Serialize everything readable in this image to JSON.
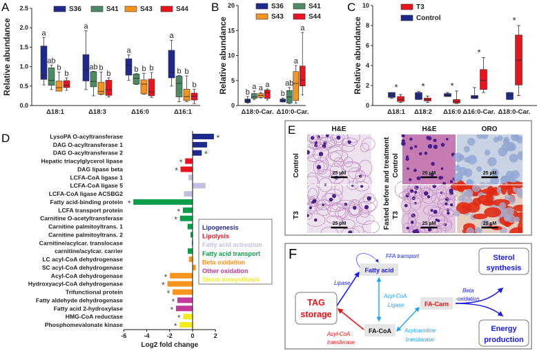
{
  "chart_data": [
    {
      "panel": "A",
      "type": "box",
      "ylabel": "Relative abundance",
      "ylim": [
        0,
        2.5
      ],
      "yticks": [
        "0.0",
        "0.5",
        "1.0",
        "1.5",
        "2.0",
        "2.5"
      ],
      "series_names": [
        "S36",
        "S41",
        "S43",
        "S44"
      ],
      "colors": [
        "#1f2a8c",
        "#4e8a63",
        "#f7941d",
        "#e8141e"
      ],
      "categories": [
        "Δ18:1",
        "Δ18:3",
        "Δ16:0",
        "Δ16:1"
      ],
      "boxes_min_q1_med_q3_max": [
        [
          [
            0.53,
            0.67,
            0.78,
            1.53,
            1.75
          ],
          [
            0.41,
            0.52,
            0.65,
            0.97,
            1.04
          ],
          [
            0.37,
            0.37,
            0.46,
            0.63,
            0.86
          ],
          [
            0.39,
            0.46,
            0.52,
            0.64,
            0.71
          ]
        ],
        [
          [
            0.41,
            0.63,
            0.92,
            1.31,
            1.92
          ],
          [
            0.25,
            0.48,
            0.62,
            0.87,
            0.88
          ],
          [
            0.28,
            0.29,
            0.36,
            0.6,
            0.86
          ],
          [
            0.22,
            0.26,
            0.41,
            0.65,
            0.71
          ]
        ],
        [
          [
            0.65,
            0.78,
            1.03,
            1.2,
            1.3
          ],
          [
            0.54,
            0.55,
            0.7,
            0.81,
            0.82
          ],
          [
            0.29,
            0.3,
            0.55,
            0.66,
            0.83
          ],
          [
            0.21,
            0.25,
            0.35,
            0.68,
            0.85
          ]
        ],
        [
          [
            0.5,
            0.71,
            0.85,
            1.42,
            1.68
          ],
          [
            0.1,
            0.22,
            0.57,
            0.76,
            0.77
          ],
          [
            0.1,
            0.13,
            0.23,
            0.42,
            0.76
          ],
          [
            0.05,
            0.14,
            0.24,
            0.32,
            0.42
          ]
        ]
      ],
      "letters": [
        [
          "a",
          "ab",
          "b",
          "b"
        ],
        [
          "a",
          "ab",
          "b",
          "b"
        ],
        [
          "a",
          "b",
          "b",
          "b"
        ],
        [
          "a",
          "b",
          "b",
          "b"
        ]
      ]
    },
    {
      "panel": "B",
      "type": "box",
      "ylabel": "Relative abundance",
      "ylim": [
        0,
        20
      ],
      "yticks": [
        "0",
        "5",
        "10",
        "15",
        "20"
      ],
      "series_names": [
        "S36",
        "S41",
        "S43",
        "S44"
      ],
      "colors": [
        "#1f2a8c",
        "#4e8a63",
        "#f7941d",
        "#e8141e"
      ],
      "categories": [
        "Δ18:0-Car.",
        "Δ10:0-Car."
      ],
      "boxes_min_q1_med_q3_max": [
        [
          [
            0.5,
            0.6,
            1.0,
            1.3,
            1.8
          ],
          [
            1.2,
            1.4,
            1.7,
            2.4,
            2.9
          ],
          [
            1.5,
            1.6,
            2.0,
            2.4,
            2.6
          ],
          [
            1.1,
            1.4,
            2.6,
            3.1,
            3.3
          ]
        ],
        [
          [
            0.7,
            0.7,
            1.0,
            1.3,
            1.5
          ],
          [
            0.4,
            0.5,
            1.7,
            3.0,
            3.6
          ],
          [
            0.5,
            1.0,
            4.4,
            6.8,
            8.0
          ],
          [
            2.1,
            3.9,
            5.1,
            7.9,
            14.6
          ]
        ]
      ],
      "letters": [
        [
          "b",
          "a",
          "a",
          "a"
        ],
        [
          "b",
          "ab",
          "a",
          "a"
        ]
      ]
    },
    {
      "panel": "C",
      "type": "box",
      "ylabel": "Relative abundance",
      "ylim": [
        0,
        10
      ],
      "yticks": [
        "0",
        "2",
        "4",
        "6",
        "8",
        "10"
      ],
      "series_names": [
        "Control",
        "T3"
      ],
      "legend_order": [
        "T3",
        "Control"
      ],
      "colors": [
        "#1f2a8c",
        "#e8141e"
      ],
      "categories": [
        "Δ18:1",
        "Δ18:2",
        "Δ16:0",
        "Δ16:0-Car.",
        "Δ18:0-Car."
      ],
      "boxes_min_q1_med_q3_max": [
        [
          [
            0.7,
            0.8,
            1.0,
            1.3,
            1.3
          ],
          [
            0.3,
            0.4,
            0.6,
            0.9,
            1.1
          ]
        ],
        [
          [
            0.6,
            0.6,
            1.0,
            1.3,
            1.4
          ],
          [
            0.3,
            0.45,
            0.6,
            0.75,
            0.95
          ]
        ],
        [
          [
            0.9,
            0.9,
            1.0,
            1.2,
            1.3
          ],
          [
            0.2,
            0.25,
            0.4,
            0.6,
            1.45
          ]
        ],
        [
          [
            0.7,
            0.7,
            0.9,
            1.0,
            1.8
          ],
          [
            1.3,
            1.6,
            2.5,
            3.6,
            4.8
          ]
        ],
        [
          [
            0.6,
            0.6,
            1.0,
            1.3,
            1.3
          ],
          [
            1.0,
            2.05,
            4.55,
            7.05,
            8.0
          ]
        ]
      ],
      "significance": [
        "*",
        "*",
        "*",
        "*",
        "*"
      ]
    },
    {
      "panel": "D",
      "type": "bar",
      "orientation": "horizontal",
      "xlabel": "Log2 fold change",
      "xlim": [
        -6,
        2
      ],
      "xticks": [
        "-6",
        "-4",
        "-2",
        "0",
        "2"
      ],
      "groups": {
        "lipogenesis": {
          "label": "Lipogenesis",
          "color": "#1f2a8c"
        },
        "lipolysis": {
          "label": "Lipolysis",
          "color": "#e8141e"
        },
        "activation": {
          "label": "Fatty acid activation",
          "color": "#c4c0df"
        },
        "transport": {
          "label": "Fatty acid transport",
          "color": "#0a9e48"
        },
        "beta": {
          "label": "Beta oxidation",
          "color": "#f7941d"
        },
        "other": {
          "label": "Other oxidation",
          "color": "#c0399b"
        },
        "sterol": {
          "label": "Sterol biosynthesis",
          "color": "#f4ea1c"
        }
      },
      "legend_order": [
        "lipogenesis",
        "lipolysis",
        "activation",
        "transport",
        "beta",
        "other",
        "sterol"
      ],
      "bars": [
        {
          "label": "LysoPA O-acyltransferase",
          "value": 1.86,
          "group": "lipogenesis",
          "sig": "*"
        },
        {
          "label": "DAG O-acyltransferase 1",
          "value": 1.27,
          "group": "lipogenesis",
          "sig": ""
        },
        {
          "label": "DAG O-acyltransferase 2",
          "value": 0.8,
          "group": "lipogenesis",
          "sig": "*"
        },
        {
          "label": "Hepatic triacylglycerol lipase",
          "value": -0.65,
          "group": "lipolysis",
          "sig": "*"
        },
        {
          "label": "DAG lipase beta",
          "value": -1.05,
          "group": "lipolysis",
          "sig": "*"
        },
        {
          "label": "LCFA-CoA ligase 1",
          "value": -0.36,
          "group": "activation",
          "sig": ""
        },
        {
          "label": "LCFA-CoA ligase 5",
          "value": 1.13,
          "group": "activation",
          "sig": ""
        },
        {
          "label": "LCFA-CoA ligase ACSBG2",
          "value": -0.75,
          "group": "activation",
          "sig": ""
        },
        {
          "label": "Fatty acid-binding protein",
          "value": -5.17,
          "group": "transport",
          "sig": "*"
        },
        {
          "label": "LCFA transport protein",
          "value": -0.85,
          "group": "transport",
          "sig": "*"
        },
        {
          "label": "Carnitine O-acetyltransferase",
          "value": -1.1,
          "group": "transport",
          "sig": "*"
        },
        {
          "label": "Carnitine palmitoyltrans. 1",
          "value": -0.44,
          "group": "transport",
          "sig": ""
        },
        {
          "label": "Carnitine palmitoyltrans. 2",
          "value": -0.18,
          "group": "transport",
          "sig": ""
        },
        {
          "label": "Carnitine/acylcar. translocase",
          "value": -0.06,
          "group": "transport",
          "sig": ""
        },
        {
          "label": "carnitine/acylcar. carrier",
          "value": -0.42,
          "group": "transport",
          "sig": ""
        },
        {
          "label": "LC acyl-CoA dehydrogenase",
          "value": -0.32,
          "group": "beta",
          "sig": ""
        },
        {
          "label": "SC acyl-CoA dehydrogenase",
          "value": 0.28,
          "group": "beta",
          "sig": ""
        },
        {
          "label": "Acyl-CoA dehydrogenase",
          "value": -1.98,
          "group": "beta",
          "sig": "*"
        },
        {
          "label": "Hydroxyacyl-CoA dehydrogenase",
          "value": -2.2,
          "group": "beta",
          "sig": "*"
        },
        {
          "label": "Trifunctional protein",
          "value": -1.74,
          "group": "beta",
          "sig": "*"
        },
        {
          "label": "Fatty aldehyde dehydrogenase",
          "value": -1.33,
          "group": "other",
          "sig": "*"
        },
        {
          "label": "Fatty acid 2-hydroxylase",
          "value": -1.45,
          "group": "other",
          "sig": "*"
        },
        {
          "label": "HMG-CoA reductase",
          "value": -0.83,
          "group": "sterol",
          "sig": "*"
        },
        {
          "label": "Phosphomevalonate kinase",
          "value": -1.13,
          "group": "sterol",
          "sig": "*"
        }
      ]
    }
  ],
  "panel_labels": {
    "A": "A",
    "B": "B",
    "C": "C",
    "D": "D",
    "E": "E",
    "F": "F"
  },
  "histology": {
    "headers": [
      "H&E",
      "H&E",
      "ORO"
    ],
    "row_labels_left": [
      "Control",
      "T3"
    ],
    "middle_group_label": "Fasted before and treatment",
    "row_labels_middle": [
      "Control",
      "T3"
    ],
    "scale_bar": "25 µM"
  },
  "diagram": {
    "nodes": {
      "tag": [
        "TAG",
        "storage"
      ],
      "fatty_acid": "Fatty acid",
      "fa_coa": "FA-CoA",
      "fa_carn": "FA-Carn",
      "sterol": [
        "Sterol",
        "synthesis"
      ],
      "energy": [
        "Energy",
        "production"
      ]
    },
    "edges": {
      "ffa_transport": "FFA transport",
      "lipase": "Lipase",
      "acyl_coa_ligase": [
        "Acyl-CoA",
        "Ligase"
      ],
      "acyl_coa_transferase": [
        "Acyl-CoA",
        "transferase"
      ],
      "acylcarnitine_translocase": [
        "Acylcarnitine",
        "translocase"
      ],
      "beta_oxidation": [
        "Beta",
        "-oxidation"
      ]
    }
  }
}
